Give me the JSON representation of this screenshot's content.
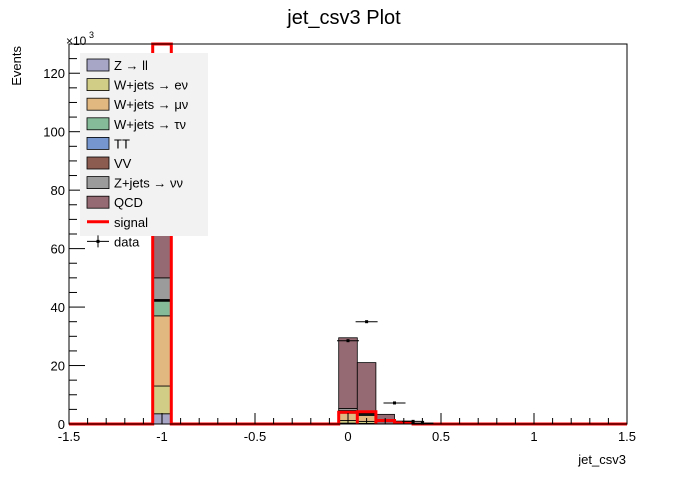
{
  "chart_data": {
    "type": "bar",
    "title": "jet_csv3 Plot",
    "xlabel": "jet_csv3",
    "ylabel": "Events",
    "y_multiplier": "×10",
    "y_multiplier_exp": "3",
    "xlim": [
      -1.5,
      1.5
    ],
    "ylim": [
      0,
      130000
    ],
    "x_ticks": [
      "-1.5",
      "-1",
      "-0.5",
      "0",
      "0.5",
      "1",
      "1.5"
    ],
    "x_tick_values": [
      -1.5,
      -1,
      -0.5,
      0,
      0.5,
      1,
      1.5
    ],
    "y_ticks": [
      "0",
      "20",
      "40",
      "60",
      "80",
      "100",
      "120"
    ],
    "y_tick_values": [
      0,
      20000,
      40000,
      60000,
      80000,
      100000,
      120000
    ],
    "grid": false,
    "legend_position": "top-left",
    "stack": [
      {
        "name": "Z → ll",
        "color": "#a7a6c7",
        "bins": [
          {
            "x0": -1.05,
            "x1": -0.95,
            "y": 3500
          },
          {
            "x0": -0.05,
            "x1": 0.05,
            "y": 300
          },
          {
            "x0": 0.05,
            "x1": 0.15,
            "y": 200
          }
        ]
      },
      {
        "name": "W+jets → eν",
        "color": "#d2cd86",
        "bins": [
          {
            "x0": -1.05,
            "x1": -0.95,
            "y": 9500
          },
          {
            "x0": -0.05,
            "x1": 0.05,
            "y": 900
          },
          {
            "x0": 0.05,
            "x1": 0.15,
            "y": 700
          }
        ]
      },
      {
        "name": "W+jets → μν",
        "color": "#e2b881",
        "bins": [
          {
            "x0": -1.05,
            "x1": -0.95,
            "y": 24000
          },
          {
            "x0": -0.05,
            "x1": 0.05,
            "y": 2500
          },
          {
            "x0": 0.05,
            "x1": 0.15,
            "y": 2000
          }
        ]
      },
      {
        "name": "W+jets → τν",
        "color": "#86bb9a",
        "bins": [
          {
            "x0": -1.05,
            "x1": -0.95,
            "y": 5000
          },
          {
            "x0": -0.05,
            "x1": 0.05,
            "y": 500
          },
          {
            "x0": 0.05,
            "x1": 0.15,
            "y": 400
          }
        ]
      },
      {
        "name": "TT",
        "color": "#7696cf",
        "bins": [
          {
            "x0": -1.05,
            "x1": -0.95,
            "y": 300
          },
          {
            "x0": -0.05,
            "x1": 0.05,
            "y": 300
          },
          {
            "x0": 0.05,
            "x1": 0.15,
            "y": 200
          }
        ]
      },
      {
        "name": "VV",
        "color": "#8c5c50",
        "bins": [
          {
            "x0": -1.05,
            "x1": -0.95,
            "y": 300
          },
          {
            "x0": -0.05,
            "x1": 0.05,
            "y": 100
          },
          {
            "x0": 0.05,
            "x1": 0.15,
            "y": 100
          }
        ]
      },
      {
        "name": "Z+jets → νν",
        "color": "#9b9b9b",
        "bins": [
          {
            "x0": -1.05,
            "x1": -0.95,
            "y": 7400
          },
          {
            "x0": -0.05,
            "x1": 0.05,
            "y": 700
          },
          {
            "x0": 0.05,
            "x1": 0.15,
            "y": 500
          }
        ]
      },
      {
        "name": "QCD",
        "color": "#966a72",
        "bins": [
          {
            "x0": -1.05,
            "x1": -0.95,
            "y": 69000
          },
          {
            "x0": -0.05,
            "x1": 0.05,
            "y": 24200
          },
          {
            "x0": 0.05,
            "x1": 0.15,
            "y": 16900
          },
          {
            "x0": 0.15,
            "x1": 0.25,
            "y": 3300
          },
          {
            "x0": 0.25,
            "x1": 0.35,
            "y": 1000
          },
          {
            "x0": 0.35,
            "x1": 0.45,
            "y": 300
          }
        ]
      }
    ],
    "signal": {
      "name": "signal",
      "color": "#ff0000",
      "bins": [
        {
          "x0": -1.05,
          "x1": -0.95,
          "y": 130000
        },
        {
          "x0": -0.05,
          "x1": 0.05,
          "y": 4000
        },
        {
          "x0": 0.05,
          "x1": 0.15,
          "y": 4200
        },
        {
          "x0": 0.15,
          "x1": 0.25,
          "y": 1200
        },
        {
          "x0": 0.25,
          "x1": 0.35,
          "y": 400
        }
      ]
    },
    "data": {
      "name": "data",
      "points": [
        {
          "x": 0.0,
          "y": 28500
        },
        {
          "x": 0.1,
          "y": 35000
        },
        {
          "x": 0.25,
          "y": 7200
        },
        {
          "x": 0.35,
          "y": 900
        },
        {
          "x": 0.4,
          "y": 300
        }
      ]
    }
  }
}
